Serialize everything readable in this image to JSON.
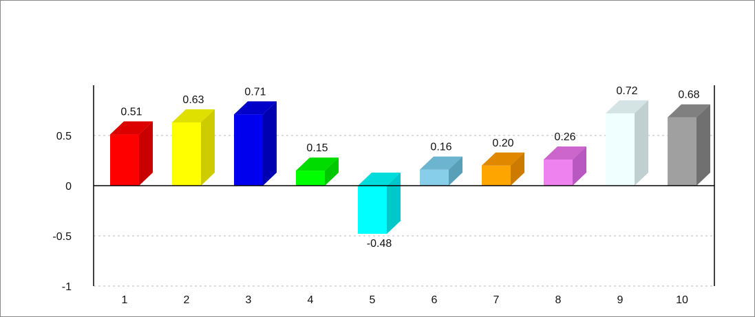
{
  "chart_data": {
    "type": "bar",
    "style": "3d-bars",
    "categories": [
      "1",
      "2",
      "3",
      "4",
      "5",
      "6",
      "7",
      "8",
      "9",
      "10"
    ],
    "values": [
      0.51,
      0.63,
      0.71,
      0.15,
      -0.48,
      0.16,
      0.2,
      0.26,
      0.72,
      0.68
    ],
    "value_labels": [
      "0.51",
      "0.63",
      "0.71",
      "0.15",
      "-0.48",
      "0.16",
      "0.20",
      "0.26",
      "0.72",
      "0.68"
    ],
    "ylim": [
      -1,
      1
    ],
    "yticks": [
      {
        "value": -1,
        "label": "-1"
      },
      {
        "value": -0.5,
        "label": "-0.5"
      },
      {
        "value": 0,
        "label": "0"
      },
      {
        "value": 0.5,
        "label": "0.5"
      }
    ],
    "grid": "horizontal dotted",
    "bar_colors": [
      {
        "front": "#ff0000",
        "side": "#c80000",
        "top": "#dc0000"
      },
      {
        "front": "#ffff00",
        "side": "#cccc00",
        "top": "#e0e000"
      },
      {
        "front": "#0000ee",
        "side": "#0000b0",
        "top": "#0000c8"
      },
      {
        "front": "#00ff00",
        "side": "#00c800",
        "top": "#00dc00"
      },
      {
        "front": "#00ffff",
        "side": "#00c8c8",
        "top": "#00dcdc"
      },
      {
        "front": "#87ceeb",
        "side": "#5a9fb8",
        "top": "#6cb4cf"
      },
      {
        "front": "#ffa500",
        "side": "#cc7a00",
        "top": "#e08800"
      },
      {
        "front": "#ee82ee",
        "side": "#b858c0",
        "top": "#cc66cc"
      },
      {
        "front": "#f0ffff",
        "side": "#c0d0d0",
        "top": "#d4e4e4"
      },
      {
        "front": "#a0a0a0",
        "side": "#707070",
        "top": "#808080"
      }
    ],
    "axis_color": "#000000",
    "grid_color": "#bbbbbb"
  }
}
